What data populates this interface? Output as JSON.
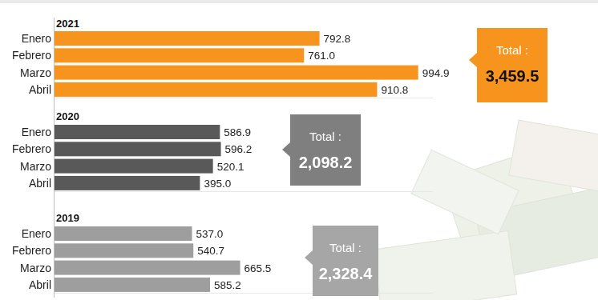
{
  "chart_data": [
    {
      "type": "bar",
      "title": "2021",
      "orientation": "horizontal",
      "categories": [
        "Enero",
        "Febrero",
        "Marzo",
        "Abril"
      ],
      "values": [
        792.8,
        761.0,
        994.9,
        910.8
      ],
      "value_labels": [
        "792.8",
        "761.0",
        "994.9",
        "910.8"
      ],
      "color": "#f7941d",
      "xlim": [
        250,
        1025
      ],
      "data_labels": true,
      "tick_labels": "y",
      "grid": false,
      "annotations": [
        "Total :",
        "3,459.5"
      ]
    },
    {
      "type": "bar",
      "title": "2020",
      "orientation": "horizontal",
      "categories": [
        "Enero",
        "Febrero",
        "Marzo",
        "Abril"
      ],
      "values": [
        586.9,
        596.2,
        520.1,
        395.0
      ],
      "value_labels": [
        "586.9",
        "596.2",
        "520.1",
        "395.0"
      ],
      "color": "#595959",
      "xlim": [
        -1000,
        2630
      ],
      "data_labels": true,
      "tick_labels": "y",
      "grid": false,
      "annotations": [
        "Total :",
        "2,098.2"
      ]
    },
    {
      "type": "bar",
      "title": "2019",
      "orientation": "horizontal",
      "categories": [
        "Enero",
        "Febrero",
        "Marzo",
        "Abril"
      ],
      "values": [
        537.0,
        540.7,
        665.5,
        585.2
      ],
      "value_labels": [
        "537.0",
        "540.7",
        "665.5",
        "585.2"
      ],
      "color": "#9e9e9e",
      "xlim": [
        170,
        1180
      ],
      "data_labels": true,
      "tick_labels": "y",
      "grid": false,
      "annotations": [
        "Total :",
        "2,328.4"
      ]
    }
  ]
}
